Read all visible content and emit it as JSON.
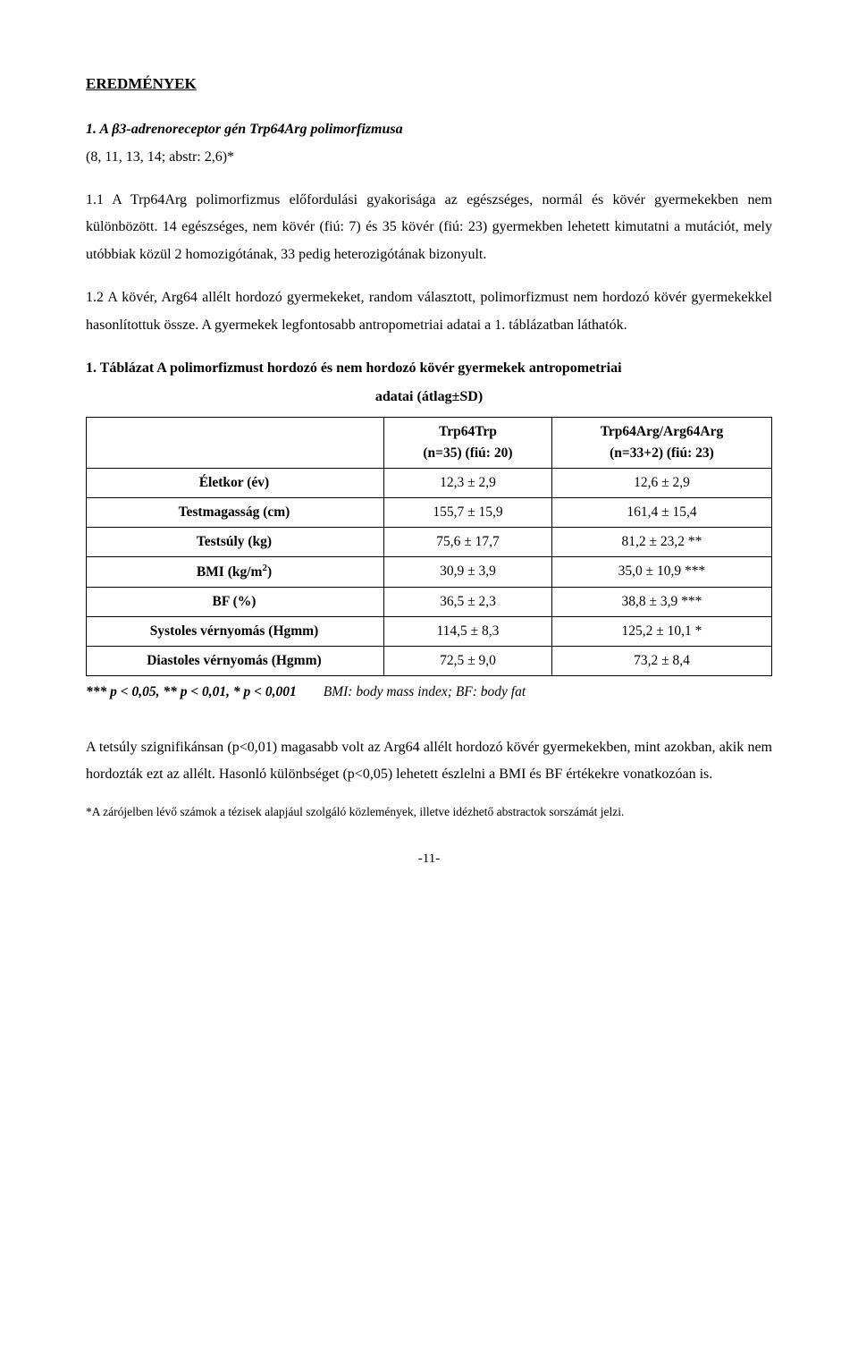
{
  "section_heading": "EREDMÉNYEK",
  "subsection_title": "1. A β3-adrenoreceptor gén Trp64Arg polimorfizmusa",
  "refs_line": "(8, 11, 13, 14; abstr: 2,6)*",
  "para_1_1": "1.1 A Trp64Arg polimorfizmus előfordulási gyakorisága az egészséges, normál és kövér gyermekekben nem különbözött. 14 egészséges, nem kövér (fiú: 7) és 35 kövér (fiú: 23) gyermekben lehetett kimutatni a mutációt, mely utóbbiak közül 2 homozigótának, 33 pedig heterozigótának bizonyult.",
  "para_1_2": "1.2 A kövér, Arg64 allélt hordozó gyermekeket, random választott, polimorfizmust nem hordozó kövér gyermekekkel hasonlítottuk össze. A gyermekek legfontosabb antropometriai adatai a 1. táblázatban láthatók.",
  "table": {
    "caption_main": "1. Táblázat A polimorfizmust hordozó és nem hordozó kövér gyermekek antropometriai",
    "caption_sub": "adatai (átlag±SD)",
    "col_headers": {
      "c1_line1": "Trp64Trp",
      "c1_line2": "(n=35) (fiú: 20)",
      "c2_line1": "Trp64Arg/Arg64Arg",
      "c2_line2": "(n=33+2) (fiú: 23)"
    },
    "rows": [
      {
        "label": "Életkor (év)",
        "c1": "12,3 ±  2,9",
        "c2": "12,6 ± 2,9"
      },
      {
        "label": "Testmagasság (cm)",
        "c1": "155,7 ± 15,9",
        "c2": "161,4 ± 15,4"
      },
      {
        "label": "Testsúly (kg)",
        "c1": "75,6 ± 17,7",
        "c2": "81,2 ± 23,2 **"
      },
      {
        "label_html": "BMI (kg/m<span class=\"sup\">2</span>)",
        "label": "BMI (kg/m2)",
        "c1": "30,9 ±  3,9",
        "c2": "35,0 ± 10,9 ***"
      },
      {
        "label": "BF (%)",
        "c1": "36,5 ± 2,3",
        "c2": "38,8 ±  3,9 ***"
      },
      {
        "label": "Systoles vérnyomás (Hgmm)",
        "c1": "114,5 ± 8,3",
        "c2": "125,2 ± 10,1 *"
      },
      {
        "label": "Diastoles vérnyomás (Hgmm)",
        "c1": "72,5 ± 9,0",
        "c2": "73,2 ±  8,4"
      }
    ],
    "footnote_left": "*** p < 0,05, ** p < 0,01, * p < 0,001",
    "footnote_right": "BMI: body mass index; BF: body fat"
  },
  "para_after_table": "A tetsúly szignifikánsan (p<0,01) magasabb volt az Arg64 allélt hordozó kövér gyermekekben, mint azokban, akik nem hordozták ezt az allélt. Hasonló különbséget (p<0,05) lehetett észlelni a BMI és BF értékekre vonatkozóan is.",
  "small_note": "*A zárójelben lévő számok a tézisek alapjául szolgáló közlemények, illetve idézhető abstractok sorszámát jelzi.",
  "page_number": "-11-"
}
